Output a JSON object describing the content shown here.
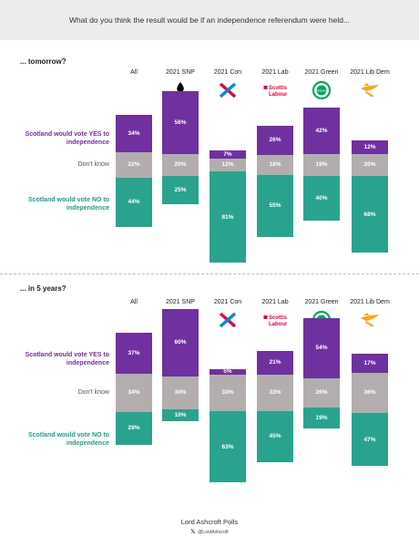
{
  "header": {
    "question": "What do you think the result would be if an independence referendum were held..."
  },
  "colors": {
    "yes": "#7030a0",
    "dont_know": "#b3adad",
    "no": "#2aa38e",
    "header_bg": "#ececec"
  },
  "row_labels": {
    "yes": "Scotland would vote YES to independence",
    "dont_know": "Don't know",
    "no": "Scotland would vote NO to independence"
  },
  "chart_data": [
    {
      "type": "bar",
      "subtype": "diverging-stacked",
      "title": "... tomorrow?",
      "categories": [
        "All",
        "2021 SNP",
        "2021 Con",
        "2021 Lab",
        "2021 Green",
        "2021 Lib Dem"
      ],
      "series": [
        {
          "name": "Scotland would vote YES to independence",
          "values": [
            34,
            56,
            7,
            26,
            42,
            12
          ]
        },
        {
          "name": "Don't know",
          "values": [
            22,
            20,
            12,
            18,
            19,
            20
          ]
        },
        {
          "name": "Scotland would vote NO to independence",
          "values": [
            44,
            25,
            81,
            55,
            40,
            68
          ]
        }
      ],
      "unit": "%"
    },
    {
      "type": "bar",
      "subtype": "diverging-stacked",
      "title": "... in 5 years?",
      "categories": [
        "All",
        "2021 SNP",
        "2021 Con",
        "2021 Lab",
        "2021 Green",
        "2021 Lib Dem"
      ],
      "series": [
        {
          "name": "Scotland would vote YES to independence",
          "values": [
            37,
            60,
            5,
            21,
            54,
            17
          ]
        },
        {
          "name": "Don't know",
          "values": [
            34,
            30,
            33,
            33,
            26,
            36
          ]
        },
        {
          "name": "Scotland would vote NO to independence",
          "values": [
            29,
            10,
            63,
            45,
            19,
            47
          ]
        }
      ],
      "unit": "%"
    }
  ],
  "logos": [
    "snp-logo",
    "conservative-logo",
    "scottish-labour-logo",
    "scottish-green-logo",
    "lib-dem-logo"
  ],
  "logo_text": {
    "labour_line1": "Scottish",
    "labour_line2": "Labour",
    "green": "GREENS"
  },
  "footer": {
    "source": "Lord Ashcroft Polls",
    "handle": "@LordAshcroft"
  }
}
